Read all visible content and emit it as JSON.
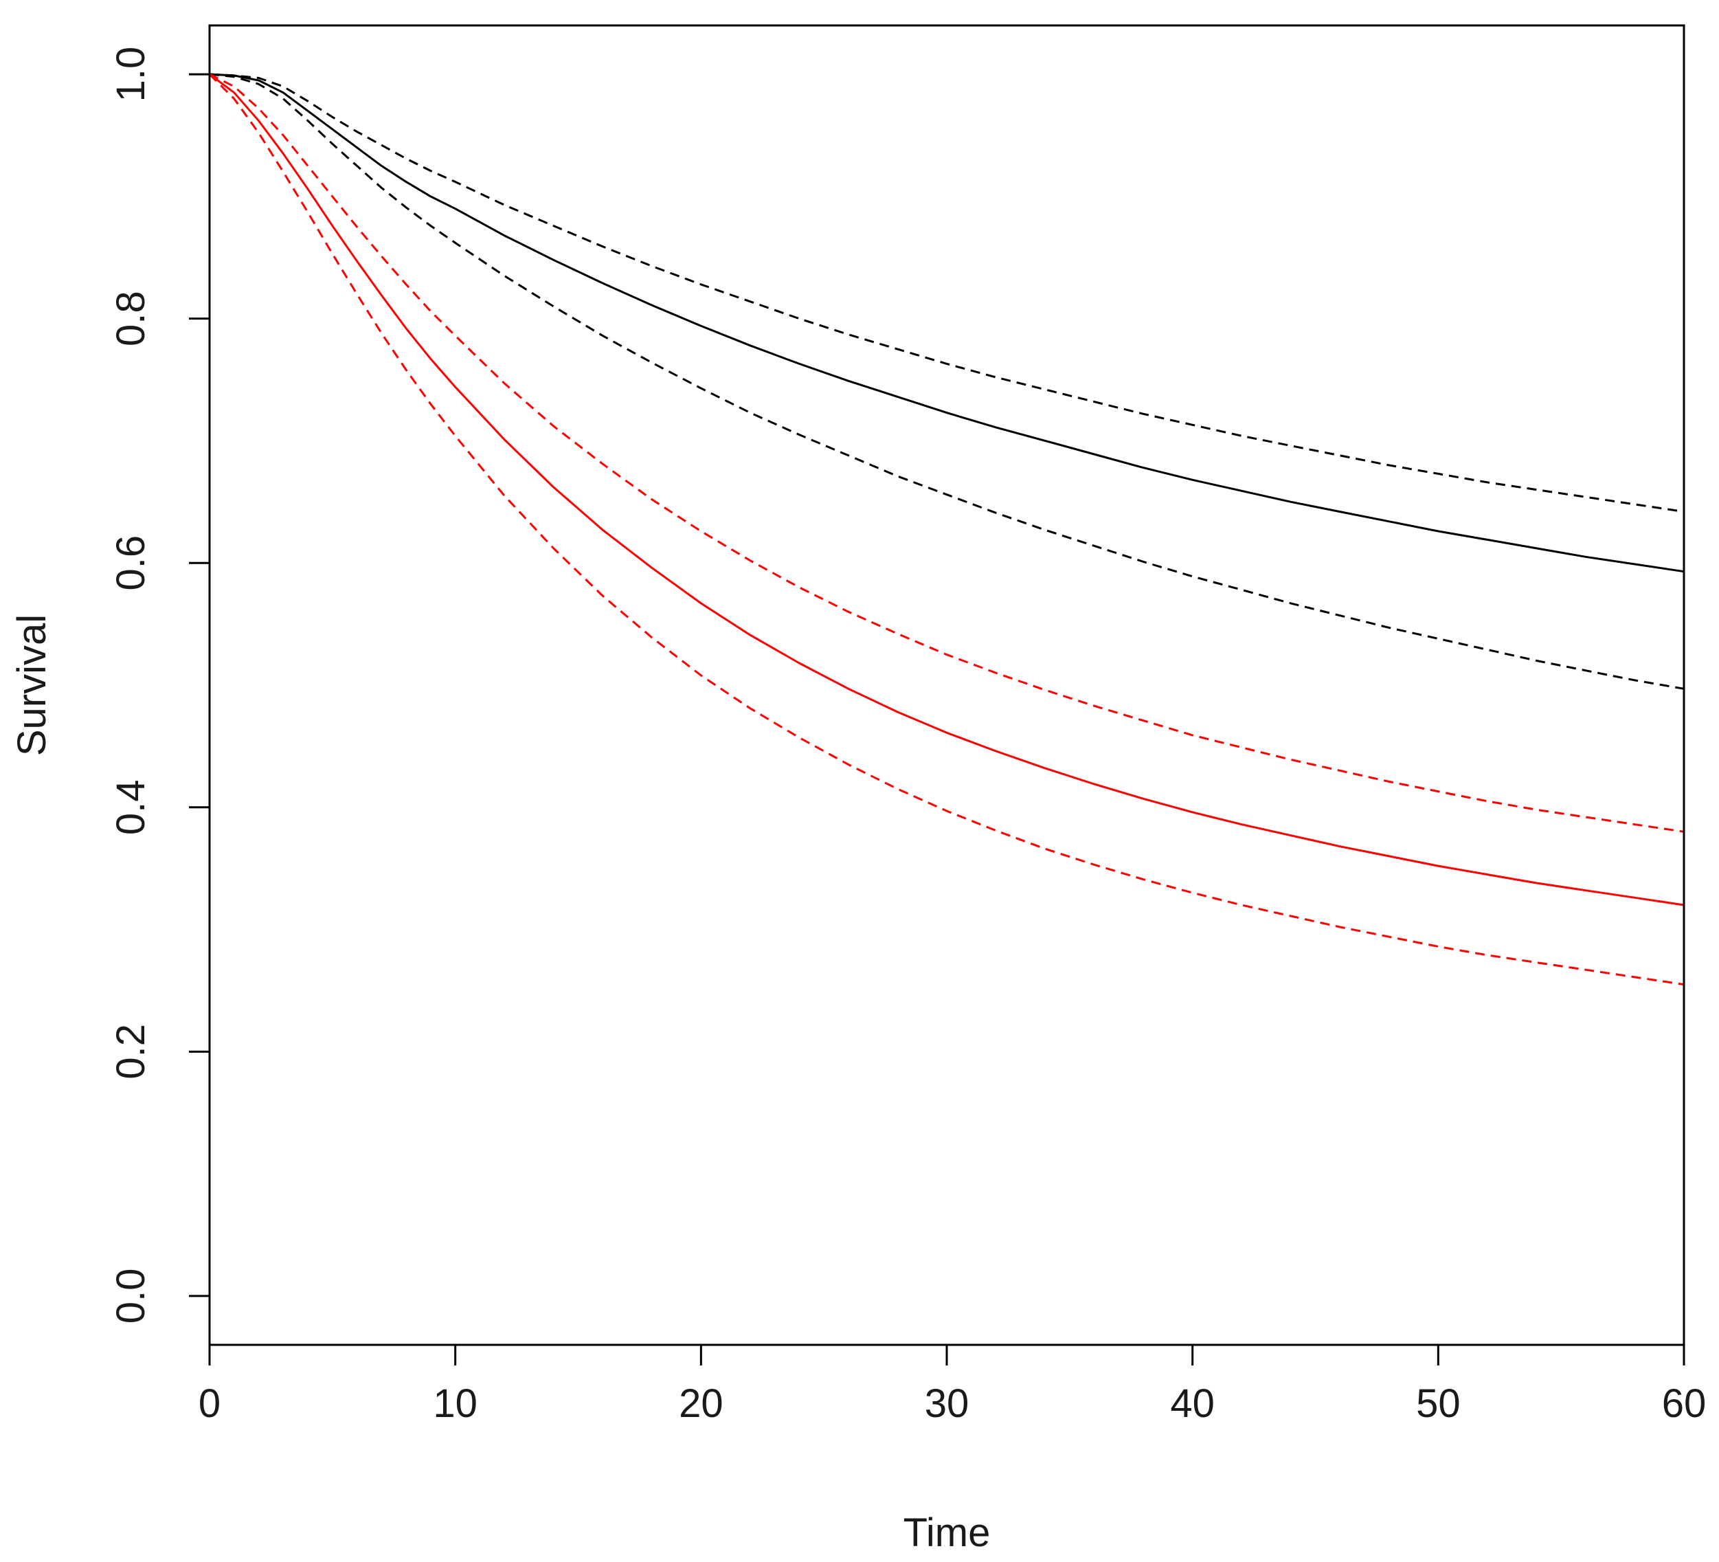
{
  "chart_data": {
    "type": "line",
    "title": "",
    "xlabel": "Time",
    "ylabel": "Survival",
    "xlim": [
      0,
      60
    ],
    "ylim": [
      -0.04,
      1.04
    ],
    "x_ticks": [
      0,
      10,
      20,
      30,
      40,
      50,
      60
    ],
    "x_tick_labels": [
      "0",
      "10",
      "20",
      "30",
      "40",
      "50",
      "60"
    ],
    "y_ticks": [
      0,
      0.2,
      0.4,
      0.6,
      0.8,
      1.0
    ],
    "y_tick_labels": [
      "0.0",
      "0.2",
      "0.4",
      "0.6",
      "0.8",
      "1.0"
    ],
    "grid": false,
    "legend": "none",
    "x": [
      0,
      1,
      2,
      3,
      4,
      5,
      6,
      7,
      8,
      9,
      10,
      12,
      14,
      16,
      18,
      20,
      22,
      24,
      26,
      28,
      30,
      32,
      34,
      36,
      38,
      40,
      42,
      44,
      46,
      48,
      50,
      52,
      54,
      56,
      58,
      60
    ],
    "series": [
      {
        "color": "#000000",
        "linestyle": "solid",
        "values": [
          1.0,
          0.999,
          0.995,
          0.985,
          0.97,
          0.955,
          0.94,
          0.925,
          0.912,
          0.9,
          0.89,
          0.868,
          0.848,
          0.829,
          0.811,
          0.794,
          0.778,
          0.763,
          0.749,
          0.736,
          0.723,
          0.711,
          0.7,
          0.689,
          0.678,
          0.668,
          0.659,
          0.65,
          0.642,
          0.634,
          0.626,
          0.619,
          0.612,
          0.605,
          0.599,
          0.593
        ]
      },
      {
        "color": "#000000",
        "linestyle": "dashed",
        "values": [
          1.0,
          0.999,
          0.997,
          0.99,
          0.978,
          0.965,
          0.953,
          0.942,
          0.931,
          0.921,
          0.912,
          0.893,
          0.876,
          0.859,
          0.843,
          0.828,
          0.814,
          0.8,
          0.787,
          0.775,
          0.763,
          0.752,
          0.742,
          0.732,
          0.722,
          0.713,
          0.704,
          0.696,
          0.688,
          0.68,
          0.673,
          0.666,
          0.66,
          0.654,
          0.648,
          0.642
        ]
      },
      {
        "color": "#000000",
        "linestyle": "dashed",
        "values": [
          1.0,
          0.998,
          0.992,
          0.98,
          0.962,
          0.943,
          0.925,
          0.907,
          0.891,
          0.876,
          0.862,
          0.835,
          0.81,
          0.786,
          0.764,
          0.743,
          0.723,
          0.705,
          0.688,
          0.671,
          0.656,
          0.641,
          0.627,
          0.614,
          0.601,
          0.589,
          0.578,
          0.567,
          0.557,
          0.547,
          0.538,
          0.529,
          0.52,
          0.512,
          0.504,
          0.497
        ]
      },
      {
        "color": "#ff0000",
        "linestyle": "solid",
        "values": [
          1.0,
          0.985,
          0.962,
          0.935,
          0.906,
          0.876,
          0.847,
          0.819,
          0.792,
          0.767,
          0.744,
          0.701,
          0.662,
          0.627,
          0.596,
          0.567,
          0.541,
          0.518,
          0.497,
          0.478,
          0.461,
          0.446,
          0.432,
          0.419,
          0.407,
          0.396,
          0.386,
          0.377,
          0.368,
          0.36,
          0.352,
          0.345,
          0.338,
          0.332,
          0.326,
          0.32
        ]
      },
      {
        "color": "#ff0000",
        "linestyle": "dashed",
        "values": [
          1.0,
          0.99,
          0.972,
          0.95,
          0.925,
          0.9,
          0.875,
          0.851,
          0.828,
          0.806,
          0.786,
          0.747,
          0.712,
          0.681,
          0.652,
          0.626,
          0.602,
          0.58,
          0.56,
          0.542,
          0.525,
          0.51,
          0.496,
          0.483,
          0.471,
          0.459,
          0.449,
          0.439,
          0.43,
          0.421,
          0.413,
          0.405,
          0.398,
          0.392,
          0.386,
          0.38
        ]
      },
      {
        "color": "#ff0000",
        "linestyle": "dashed",
        "values": [
          1.0,
          0.98,
          0.952,
          0.92,
          0.887,
          0.853,
          0.82,
          0.788,
          0.758,
          0.73,
          0.704,
          0.655,
          0.612,
          0.573,
          0.539,
          0.508,
          0.481,
          0.457,
          0.435,
          0.415,
          0.397,
          0.381,
          0.366,
          0.353,
          0.341,
          0.33,
          0.32,
          0.311,
          0.302,
          0.294,
          0.286,
          0.279,
          0.273,
          0.267,
          0.261,
          0.255
        ]
      }
    ]
  }
}
